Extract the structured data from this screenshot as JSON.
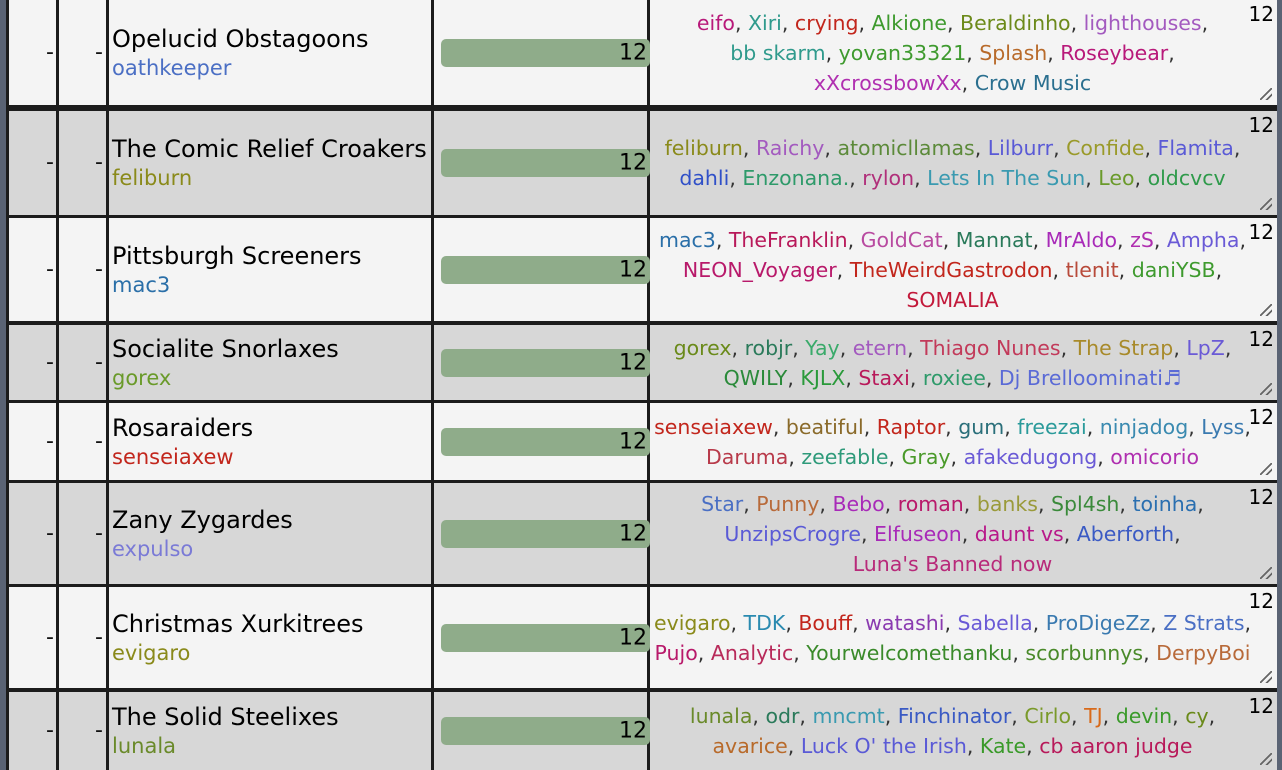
{
  "dash": "-",
  "rows": [
    {
      "team": "Opelucid Obstagoons",
      "captain": "oathkeeper",
      "captain_color": "#4b6fc4",
      "score": "12",
      "count": "12",
      "members": [
        {
          "n": "eifo",
          "c": "#b8197a"
        },
        {
          "n": "Xiri",
          "c": "#2f9a8c"
        },
        {
          "n": "crying",
          "c": "#c2261c"
        },
        {
          "n": "Alkione",
          "c": "#3e9a2e"
        },
        {
          "n": "Beraldinho",
          "c": "#6c8a1a"
        },
        {
          "n": "lighthouses",
          "c": "#a35abf"
        },
        {
          "n": "bb skarm",
          "c": "#2f9a8c"
        },
        {
          "n": "yovan33321",
          "c": "#3e9a2e"
        },
        {
          "n": "Splash",
          "c": "#b86a2a"
        },
        {
          "n": "Roseybear",
          "c": "#b8197a"
        },
        {
          "n": "xXcrossbowXx",
          "c": "#b02fb0"
        },
        {
          "n": "Crow Music",
          "c": "#2a6f8f"
        }
      ]
    },
    {
      "team": "The Comic Relief Croakers",
      "captain": "feliburn",
      "captain_color": "#8a8a1a",
      "score": "12",
      "count": "12",
      "members": [
        {
          "n": "feliburn",
          "c": "#8a8a1a"
        },
        {
          "n": "Raichy",
          "c": "#a35abf"
        },
        {
          "n": "atomicllamas",
          "c": "#5c8a3a"
        },
        {
          "n": "Lilburr",
          "c": "#5a5ad6"
        },
        {
          "n": "Confide",
          "c": "#9a9a2a"
        },
        {
          "n": "Flamita",
          "c": "#5a5ad6"
        },
        {
          "n": "dahli",
          "c": "#3050c8"
        },
        {
          "n": "Enzonana.",
          "c": "#2e9a6a"
        },
        {
          "n": "rylon",
          "c": "#b02f7a"
        },
        {
          "n": "Lets In The Sun",
          "c": "#3a9ab0"
        },
        {
          "n": "Leo",
          "c": "#6a9a2a"
        },
        {
          "n": "oldcvcv",
          "c": "#2e9a4a"
        }
      ]
    },
    {
      "team": "Pittsburgh Screeners",
      "captain": "mac3",
      "captain_color": "#2a6fa8",
      "score": "12",
      "count": "12",
      "members": [
        {
          "n": "mac3",
          "c": "#2a6fa8"
        },
        {
          "n": "TheFranklin",
          "c": "#b8195a"
        },
        {
          "n": "GoldCat",
          "c": "#b84aa0"
        },
        {
          "n": "Mannat",
          "c": "#2a7a5a"
        },
        {
          "n": "MrAldo",
          "c": "#a82ab8"
        },
        {
          "n": "zS",
          "c": "#b02fb0"
        },
        {
          "n": "Ampha",
          "c": "#6a5ad6"
        },
        {
          "n": "NEON_Voyager",
          "c": "#b8196a"
        },
        {
          "n": "TheWeirdGastrodon",
          "c": "#c2261c"
        },
        {
          "n": "tlenit",
          "c": "#b84a3a"
        },
        {
          "n": "daniYSB",
          "c": "#3e9a2e"
        },
        {
          "n": "SOMALIA",
          "c": "#c2193a"
        }
      ]
    },
    {
      "team": "Socialite Snorlaxes",
      "captain": "gorex",
      "captain_color": "#6a9a2a",
      "score": "12",
      "count": "12",
      "members": [
        {
          "n": "gorex",
          "c": "#6a8a1a"
        },
        {
          "n": "robjr",
          "c": "#2a7a5a"
        },
        {
          "n": "Yay",
          "c": "#3aaa6a"
        },
        {
          "n": "etern",
          "c": "#a35abf"
        },
        {
          "n": "Thiago Nunes",
          "c": "#c23a5a"
        },
        {
          "n": "The Strap",
          "c": "#a88a2a"
        },
        {
          "n": "LpZ",
          "c": "#6a5ad6"
        },
        {
          "n": "QWILY",
          "c": "#2a8a3a"
        },
        {
          "n": "KJLX",
          "c": "#2a9a3a"
        },
        {
          "n": "Staxi",
          "c": "#b8195a"
        },
        {
          "n": "roxiee",
          "c": "#2e9a6a"
        },
        {
          "n": "Dj Brelloominati♬",
          "c": "#5a6ad6"
        }
      ]
    },
    {
      "team": "Rosaraiders",
      "captain": "senseiaxew",
      "captain_color": "#c2261c",
      "score": "12",
      "count": "12",
      "members": [
        {
          "n": "senseiaxew",
          "c": "#c2261c"
        },
        {
          "n": "beatiful",
          "c": "#8a6a2a"
        },
        {
          "n": "Raptor",
          "c": "#c2261c"
        },
        {
          "n": "gum",
          "c": "#2a6f7a"
        },
        {
          "n": "freezai",
          "c": "#2a9a9a"
        },
        {
          "n": "ninjadog",
          "c": "#3a8ab0"
        },
        {
          "n": "Lyss",
          "c": "#3a7ab0"
        },
        {
          "n": "Daruma",
          "c": "#b83a4a"
        },
        {
          "n": "zeefable",
          "c": "#2e9a7a"
        },
        {
          "n": "Gray",
          "c": "#4a9a2a"
        },
        {
          "n": "afakedugong",
          "c": "#6a5ad6"
        },
        {
          "n": "omicorio",
          "c": "#b02fb0"
        }
      ]
    },
    {
      "team": "Zany Zygardes",
      "captain": "expulso",
      "captain_color": "#7a7ad6",
      "score": "12",
      "count": "12",
      "members": [
        {
          "n": "Star",
          "c": "#4a6fc4"
        },
        {
          "n": "Punny",
          "c": "#b86a3a"
        },
        {
          "n": "Bebo",
          "c": "#a82ab8"
        },
        {
          "n": "roman",
          "c": "#b8196a"
        },
        {
          "n": "banks",
          "c": "#9a9a3a"
        },
        {
          "n": "Spl4sh",
          "c": "#3a8a3a"
        },
        {
          "n": "toinha",
          "c": "#2a6fb0"
        },
        {
          "n": "UnzipsCrogre",
          "c": "#5a5ad6"
        },
        {
          "n": "Elfuseon",
          "c": "#a82ab8"
        },
        {
          "n": "daunt vs",
          "c": "#b8198a"
        },
        {
          "n": "Aberforth",
          "c": "#3a5ac4"
        },
        {
          "n": "Luna's Banned now",
          "c": "#b82a7a"
        }
      ]
    },
    {
      "team": "Christmas Xurkitrees",
      "captain": "evigaro",
      "captain_color": "#8a8a1a",
      "score": "12",
      "count": "12",
      "members": [
        {
          "n": "evigaro",
          "c": "#8a8a1a"
        },
        {
          "n": "TDK",
          "c": "#2a8ab0"
        },
        {
          "n": "Bouff",
          "c": "#c2261c"
        },
        {
          "n": "watashi",
          "c": "#8a3ab0"
        },
        {
          "n": "Sabella",
          "c": "#6a5ad6"
        },
        {
          "n": "ProDigeZz",
          "c": "#3a7ab0"
        },
        {
          "n": "Z Strats",
          "c": "#4a6fc4"
        },
        {
          "n": "Pujo",
          "c": "#b8196a"
        },
        {
          "n": "Analytic",
          "c": "#b82a5a"
        },
        {
          "n": "Yourwelcomethanku",
          "c": "#3a8a2a"
        },
        {
          "n": "scorbunnys",
          "c": "#4a8a2a"
        },
        {
          "n": "DerpyBoi",
          "c": "#b86a3a"
        }
      ]
    },
    {
      "team": "The Solid Steelixes",
      "captain": "lunala",
      "captain_color": "#6a8a2a",
      "score": "12",
      "count": "12",
      "members": [
        {
          "n": "lunala",
          "c": "#6a8a2a"
        },
        {
          "n": "odr",
          "c": "#2a7a5a"
        },
        {
          "n": "mncmt",
          "c": "#3a9ab0"
        },
        {
          "n": "Finchinator",
          "c": "#3a5ac4"
        },
        {
          "n": "Cirlo",
          "c": "#7a9a2a"
        },
        {
          "n": "TJ",
          "c": "#d86a1a"
        },
        {
          "n": "devin",
          "c": "#3a9a2a"
        },
        {
          "n": "cy",
          "c": "#6a8a1a"
        },
        {
          "n": "avarice",
          "c": "#b86a2a"
        },
        {
          "n": "Luck O' the Irish",
          "c": "#5a5ad6"
        },
        {
          "n": "Kate",
          "c": "#3a9a2a"
        },
        {
          "n": "cb aaron judge",
          "c": "#b8195a"
        }
      ]
    }
  ]
}
